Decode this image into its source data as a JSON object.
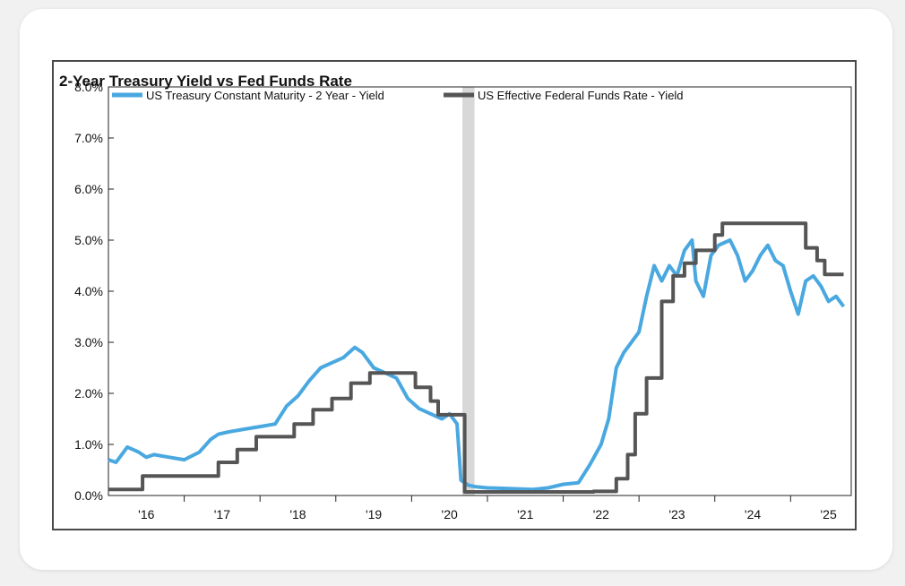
{
  "chart_data": {
    "type": "line",
    "title": "2-Year Treasury Yield vs Fed Funds Rate",
    "xlabel": "",
    "ylabel": "",
    "xlim": [
      2015.5,
      2025.3
    ],
    "ylim": [
      0,
      8
    ],
    "y_ticks": [
      0,
      1,
      2,
      3,
      4,
      5,
      6,
      7,
      8
    ],
    "y_tick_labels": [
      "0.0%",
      "1.0%",
      "2.0%",
      "3.0%",
      "4.0%",
      "5.0%",
      "6.0%",
      "7.0%",
      "8.0%"
    ],
    "x_ticks": [
      2016,
      2017,
      2018,
      2019,
      2020,
      2021,
      2022,
      2023,
      2024,
      2025
    ],
    "x_tick_labels": [
      "'16",
      "'17",
      "'18",
      "'19",
      "'20",
      "'21",
      "'22",
      "'23",
      "'24",
      "'25"
    ],
    "legend_position": "top-left",
    "grid": false,
    "recession_shading": [
      [
        2020.17,
        2020.33
      ]
    ],
    "series": [
      {
        "name": "US Treasury Constant Maturity - 2 Year - Yield",
        "color": "#4aa8e0",
        "x": [
          2015.5,
          2015.6,
          2015.75,
          2015.9,
          2016.0,
          2016.1,
          2016.3,
          2016.5,
          2016.7,
          2016.85,
          2016.95,
          2017.1,
          2017.3,
          2017.5,
          2017.7,
          2017.85,
          2018.0,
          2018.15,
          2018.3,
          2018.45,
          2018.6,
          2018.75,
          2018.85,
          2019.0,
          2019.15,
          2019.3,
          2019.45,
          2019.6,
          2019.75,
          2019.9,
          2020.0,
          2020.1,
          2020.15,
          2020.2,
          2020.25,
          2020.35,
          2020.5,
          2020.7,
          2020.9,
          2021.1,
          2021.3,
          2021.5,
          2021.7,
          2021.85,
          2022.0,
          2022.1,
          2022.2,
          2022.3,
          2022.4,
          2022.5,
          2022.6,
          2022.7,
          2022.8,
          2022.9,
          2023.0,
          2023.1,
          2023.2,
          2023.25,
          2023.35,
          2023.45,
          2023.55,
          2023.7,
          2023.8,
          2023.9,
          2024.0,
          2024.1,
          2024.2,
          2024.3,
          2024.4,
          2024.5,
          2024.6,
          2024.7,
          2024.8,
          2024.9,
          2025.0,
          2025.1,
          2025.2
        ],
        "values": [
          0.7,
          0.65,
          0.95,
          0.85,
          0.75,
          0.8,
          0.75,
          0.7,
          0.85,
          1.1,
          1.2,
          1.25,
          1.3,
          1.35,
          1.4,
          1.75,
          1.95,
          2.25,
          2.5,
          2.6,
          2.7,
          2.9,
          2.8,
          2.5,
          2.4,
          2.3,
          1.9,
          1.7,
          1.6,
          1.5,
          1.6,
          1.4,
          0.3,
          0.25,
          0.2,
          0.17,
          0.15,
          0.14,
          0.13,
          0.12,
          0.15,
          0.22,
          0.25,
          0.6,
          1.0,
          1.5,
          2.5,
          2.8,
          3.0,
          3.2,
          3.9,
          4.5,
          4.2,
          4.5,
          4.3,
          4.8,
          5.0,
          4.2,
          3.9,
          4.7,
          4.9,
          5.0,
          4.7,
          4.2,
          4.4,
          4.7,
          4.9,
          4.6,
          4.5,
          4.0,
          3.55,
          4.2,
          4.3,
          4.1,
          3.8,
          3.9,
          3.7
        ]
      },
      {
        "name": "US Effective Federal Funds Rate - Yield",
        "color": "#555555",
        "x": [
          2015.5,
          2015.95,
          2016.95,
          2017.2,
          2017.45,
          2017.95,
          2018.2,
          2018.45,
          2018.7,
          2018.95,
          2019.55,
          2019.75,
          2019.85,
          2020.17,
          2020.2,
          2021.9,
          2022.2,
          2022.35,
          2022.45,
          2022.6,
          2022.8,
          2022.95,
          2023.1,
          2023.25,
          2023.5,
          2023.6,
          2024.7,
          2024.85,
          2024.95,
          2025.2
        ],
        "values": [
          0.12,
          0.38,
          0.65,
          0.9,
          1.15,
          1.4,
          1.68,
          1.9,
          2.2,
          2.4,
          2.12,
          1.85,
          1.58,
          1.58,
          0.07,
          0.08,
          0.33,
          0.8,
          1.6,
          2.3,
          3.8,
          4.3,
          4.55,
          4.8,
          5.1,
          5.33,
          4.85,
          4.6,
          4.33,
          4.33
        ]
      }
    ]
  }
}
